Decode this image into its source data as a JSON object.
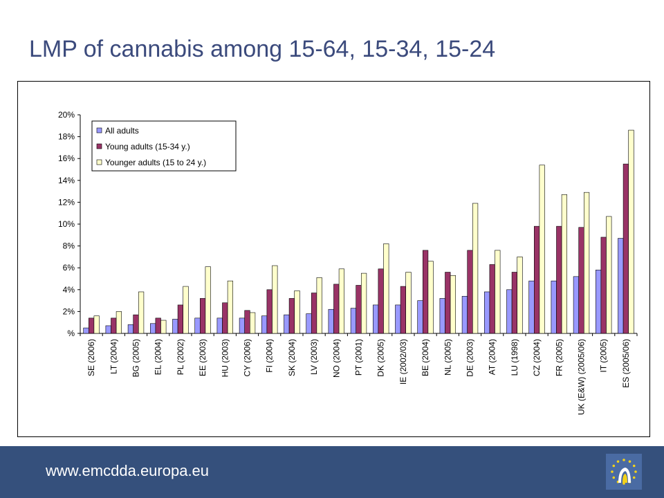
{
  "page": {
    "title": "LMP of cannabis among 15-64, 15-34, 15-24",
    "footer_url": "www.emcdda.europa.eu"
  },
  "colors": {
    "title": "#3b4a7c",
    "footer_bg": "#35507c",
    "logo_bg": "#4a6ba3",
    "logo_star": "#f3d21a"
  },
  "icons": {
    "logo": "emcdda-logo-icon"
  },
  "chart_data": {
    "type": "bar",
    "categories": [
      "SE (2006)",
      "LT (2004)",
      "BG (2005)",
      "EL (2004)",
      "PL (2002)",
      "EE (2003)",
      "HU (2003)",
      "CY (2006)",
      "FI (2004)",
      "SK (2004)",
      "LV (2003)",
      "NO (2004)",
      "PT (2001)",
      "DK (2005)",
      "IE (2002/03)",
      "BE (2004)",
      "NL (2005)",
      "DE (2003)",
      "AT (2004)",
      "LU (1998)",
      "CZ (2004)",
      "FR (2005)",
      "UK (E&W) (2005/06)",
      "IT (2005)",
      "ES (2005/06)"
    ],
    "series": [
      {
        "name": "All adults",
        "color": "#9999ff",
        "values": [
          0.5,
          0.7,
          0.8,
          0.9,
          1.3,
          1.4,
          1.4,
          1.4,
          1.6,
          1.7,
          1.8,
          2.2,
          2.3,
          2.6,
          2.6,
          3.0,
          3.2,
          3.4,
          3.8,
          4.0,
          4.8,
          4.8,
          5.2,
          5.8,
          8.7
        ]
      },
      {
        "name": "Young adults (15-34 y.)",
        "color": "#993366",
        "values": [
          1.4,
          1.4,
          1.7,
          1.4,
          2.6,
          3.2,
          2.8,
          2.1,
          4.0,
          3.2,
          3.7,
          4.5,
          4.4,
          5.9,
          4.3,
          7.6,
          5.6,
          7.6,
          6.3,
          5.6,
          9.8,
          9.8,
          9.7,
          8.8,
          15.5
        ]
      },
      {
        "name": "Younger adults (15 to 24 y.)",
        "color": "#ffffcc",
        "values": [
          1.6,
          2.0,
          3.8,
          1.2,
          4.3,
          6.1,
          4.8,
          1.9,
          6.2,
          3.9,
          5.1,
          5.9,
          5.5,
          8.2,
          5.6,
          6.6,
          5.3,
          11.9,
          7.6,
          7.0,
          15.4,
          12.7,
          12.9,
          10.7,
          18.6
        ]
      }
    ],
    "yticks": [
      "%",
      "2%",
      "4%",
      "6%",
      "8%",
      "10%",
      "12%",
      "14%",
      "16%",
      "18%",
      "20%"
    ],
    "ylim": [
      0,
      20
    ],
    "ylabel": "",
    "xlabel": "",
    "legend_position": "top-left",
    "grid": false
  }
}
